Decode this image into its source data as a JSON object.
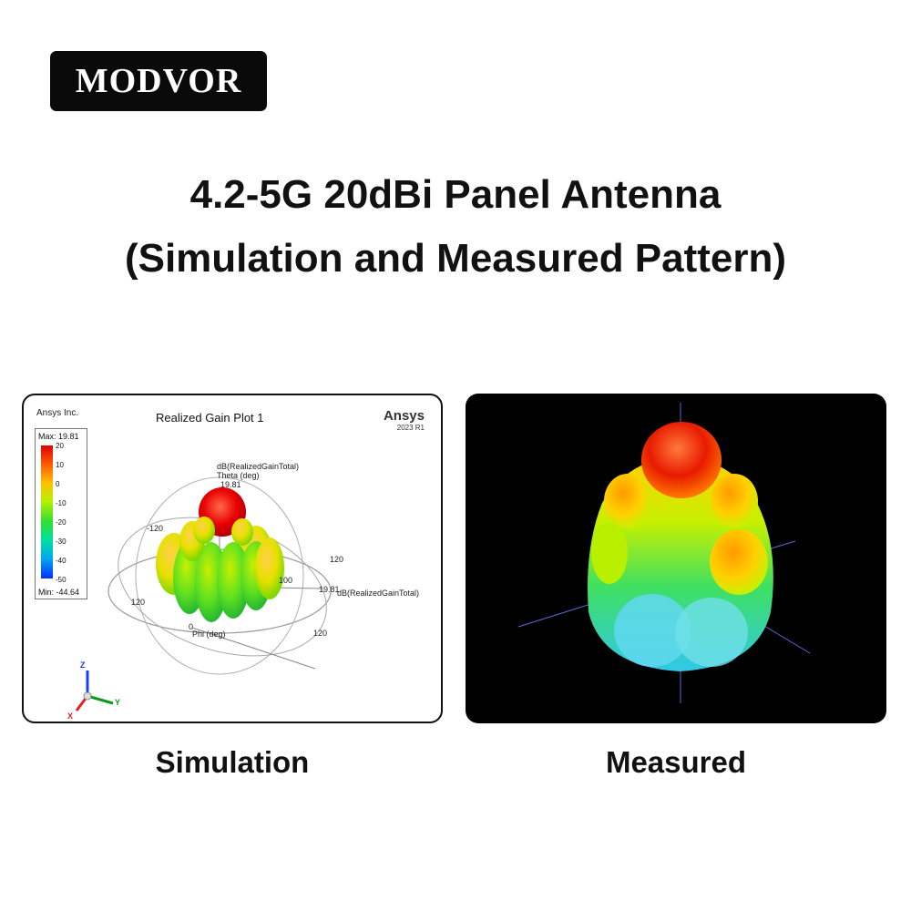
{
  "brand": {
    "logo_text": "MODVOR"
  },
  "heading": {
    "line1": "4.2-5G 20dBi Panel Antenna",
    "line2": "(Simulation and Measured Pattern)"
  },
  "simulation": {
    "caption": "Simulation",
    "company": "Ansys Inc.",
    "plot_title": "Realized Gain Plot 1",
    "software": "Ansys",
    "version": "2023 R1",
    "legend": {
      "max": "Max: 19.81",
      "min": "Min: -44.64",
      "ticks": [
        "20",
        "10",
        "0",
        "-10",
        "-20",
        "-30",
        "-40",
        "-50"
      ]
    },
    "labels": {
      "quantity": "dB(RealizedGainTotal)",
      "theta": "Theta (deg)",
      "theta_value": "19.81",
      "phi": "Phi (deg)",
      "phi_zero": "0",
      "ring_m120": "-120",
      "ring_120a": "120",
      "ring_120b": "120",
      "ring_120c": "120",
      "ring_100": "100",
      "radial_value": "19.81",
      "radial_quantity": "dB(RealizedGainTotal)"
    },
    "triad": {
      "z": "Z",
      "y": "Y",
      "x": "X"
    },
    "colors": {
      "high": "#e00000",
      "mid": "#ffc000",
      "low": "#30e030",
      "min": "#0030ff"
    }
  },
  "measured": {
    "caption": "Measured"
  }
}
